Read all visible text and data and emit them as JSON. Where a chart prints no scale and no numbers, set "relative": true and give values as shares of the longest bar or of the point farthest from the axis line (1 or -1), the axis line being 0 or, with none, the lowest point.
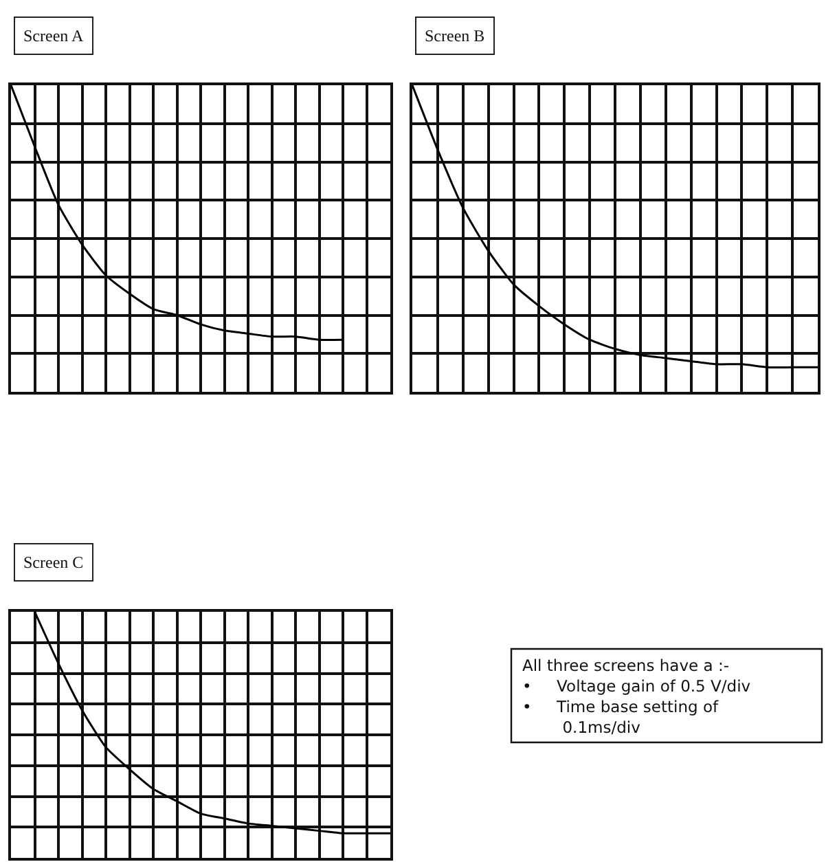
{
  "chart_data": [
    {
      "type": "line",
      "title": "Screen A",
      "relative": true,
      "grid": true,
      "marker": "none",
      "line_style": "solid",
      "categories": [
        null,
        null,
        null,
        null,
        null,
        null,
        null,
        null,
        null,
        null,
        null,
        null,
        null,
        null,
        null,
        null,
        null
      ],
      "series": [
        {
          "color": "#000000",
          "values": [
            1,
            0.8,
            0.61,
            0.48,
            0.38,
            0.32,
            0.27,
            0.25,
            0.22,
            0.2,
            0.19,
            0.18,
            0.18,
            0.17,
            0.17,
            null,
            null
          ]
        }
      ]
    },
    {
      "type": "line",
      "title": "Screen B",
      "relative": true,
      "grid": true,
      "marker": "none",
      "line_style": "solid",
      "categories": [
        null,
        null,
        null,
        null,
        null,
        null,
        null,
        null,
        null,
        null,
        null,
        null,
        null,
        null,
        null,
        null,
        null
      ],
      "series": [
        {
          "color": "#000000",
          "values": [
            1,
            0.79,
            0.6,
            0.46,
            0.35,
            0.28,
            0.22,
            0.17,
            0.14,
            0.12,
            0.11,
            0.1,
            0.09,
            0.09,
            0.08,
            0.08,
            0.08
          ]
        }
      ]
    },
    {
      "type": "line",
      "title": "Screen C",
      "relative": true,
      "grid": true,
      "marker": "none",
      "line_style": "solid",
      "categories": [
        null,
        null,
        null,
        null,
        null,
        null,
        null,
        null,
        null,
        null,
        null,
        null,
        null,
        null,
        null,
        null,
        null
      ],
      "series": [
        {
          "color": "#000000",
          "values": [
            null,
            1,
            0.79,
            0.6,
            0.45,
            0.36,
            0.28,
            0.23,
            0.18,
            0.16,
            0.14,
            0.13,
            0.12,
            0.11,
            0.1,
            0.1,
            0.1
          ]
        }
      ]
    },
    {
      "type": "other",
      "annotations": [
        "All three screens have a :-",
        "• Voltage gain of 0.5 V/div",
        "• Time base setting of 0.1ms/div"
      ]
    }
  ]
}
